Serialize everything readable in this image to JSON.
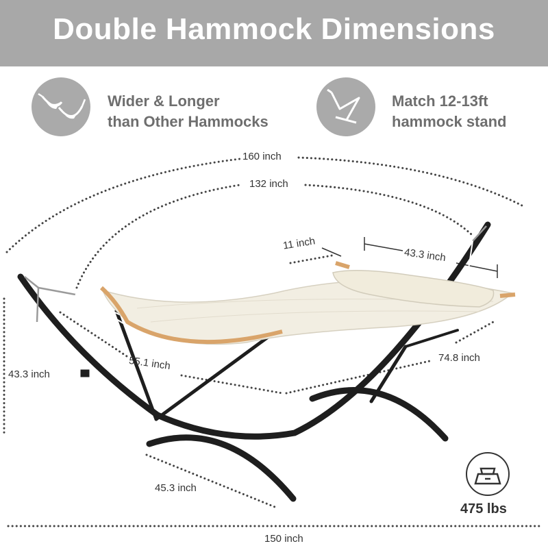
{
  "header": {
    "title": "Double Hammock Dimensions"
  },
  "features": [
    {
      "icon": "hammock-pair-icon",
      "line1": "Wider & Longer",
      "line2": "than Other Hammocks"
    },
    {
      "icon": "hammock-stand-icon",
      "line1": "Match 12-13ft",
      "line2": "hammock stand"
    }
  ],
  "dimensions": {
    "overall_arc": "160 inch",
    "bed_arc": "132 inch",
    "spreader_bar": "11 inch",
    "pillow": "43.3 inch",
    "height": "43.3 inch",
    "front_diag": "55.1 inch",
    "rear_diag": "74.8 inch",
    "base_width": "45.3 inch",
    "base_length": "150 inch"
  },
  "capacity": {
    "icon": "weight-icon",
    "label": "475 lbs"
  },
  "colors": {
    "banner": "#a8a8a8",
    "frame": "#1e1e1e",
    "fabric": "#f2eee2",
    "wood": "#d9a46a"
  }
}
